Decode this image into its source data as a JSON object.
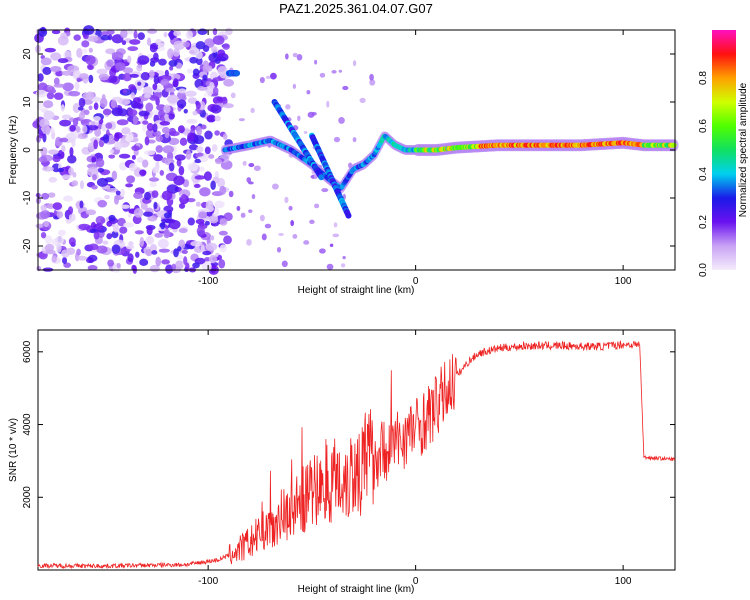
{
  "title": "PAZ1.2025.361.04.07.G07",
  "colors": {
    "snr_line": "#ee2222",
    "axis": "#000000",
    "background": "#ffffff"
  },
  "chart_data": [
    {
      "type": "heatmap",
      "title": "PAZ1.2025.361.04.07.G07",
      "xlabel": "Height of straight line (km)",
      "ylabel": "Frequency (Hz)",
      "xlim": [
        -182,
        125
      ],
      "ylim": [
        -25,
        25
      ],
      "xticks": [
        -100,
        0,
        100
      ],
      "yticks": [
        -20,
        -10,
        0,
        10,
        20
      ],
      "grid": false,
      "ridge": {
        "description": "dominant spectral ridge",
        "x": [
          -92,
          -80,
          -70,
          -60,
          -50,
          -42,
          -36,
          -30,
          -25,
          -20,
          -15,
          -10,
          -5,
          0,
          10,
          20,
          40,
          60,
          80,
          100,
          110,
          125
        ],
        "y": [
          0,
          1,
          2,
          0,
          -3,
          -6,
          -8,
          -4,
          -3,
          -1,
          3,
          1,
          0,
          0,
          0,
          0.5,
          1,
          1,
          1,
          1.5,
          1,
          1
        ]
      },
      "colorbar": {
        "label": "Normalized spectral amplitude",
        "range": [
          0,
          1
        ],
        "ticks": [
          "0.0",
          "0.2",
          "0.4",
          "0.6",
          "0.8"
        ]
      }
    },
    {
      "type": "line",
      "xlabel": "Height of straight line (km)",
      "ylabel": "SNR (10 * v/v)",
      "xlim": [
        -182,
        125
      ],
      "ylim": [
        0,
        6600
      ],
      "xticks": [
        -100,
        0,
        100
      ],
      "yticks": [
        2000,
        4000,
        6000
      ],
      "grid": false,
      "series": [
        {
          "name": "SNR",
          "x": [
            -182,
            -150,
            -110,
            -95,
            -88,
            -80,
            -72,
            -65,
            -60,
            -55,
            -50,
            -45,
            -40,
            -35,
            -30,
            -25,
            -20,
            -15,
            -10,
            -5,
            0,
            5,
            10,
            15,
            20,
            25,
            30,
            40,
            50,
            60,
            70,
            80,
            90,
            100,
            105,
            108,
            110,
            115,
            125
          ],
          "y": [
            120,
            110,
            150,
            280,
            450,
            750,
            1100,
            1500,
            1650,
            1900,
            2100,
            2300,
            2500,
            2550,
            2700,
            2900,
            3100,
            3300,
            3500,
            3700,
            3900,
            4150,
            4500,
            4950,
            5350,
            5700,
            5950,
            6100,
            6150,
            6170,
            6170,
            6150,
            6150,
            6200,
            6200,
            6200,
            3100,
            3080,
            3040
          ]
        }
      ]
    }
  ]
}
